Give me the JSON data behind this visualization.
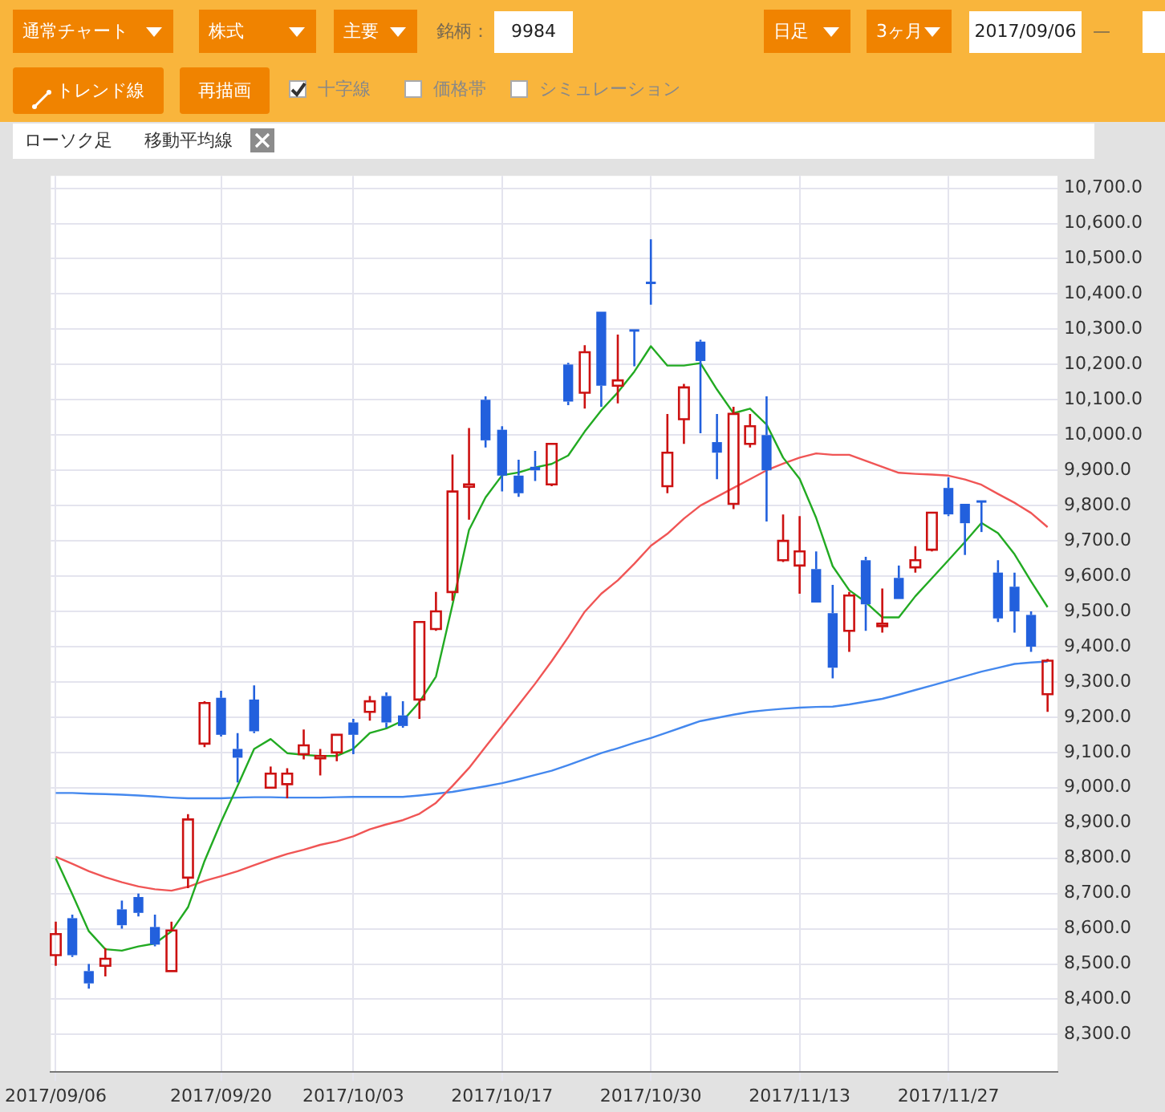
{
  "chart_data": {
    "type": "candlestick",
    "categories": [
      "2017/09/06",
      null,
      null,
      null,
      null,
      null,
      null,
      null,
      null,
      null,
      "2017/09/20",
      null,
      null,
      null,
      null,
      null,
      null,
      null,
      "2017/10/03",
      null,
      null,
      null,
      null,
      null,
      null,
      null,
      null,
      "2017/10/17",
      null,
      null,
      null,
      null,
      null,
      null,
      null,
      null,
      "2017/10/30",
      null,
      null,
      null,
      null,
      null,
      null,
      null,
      null,
      "2017/11/13",
      null,
      null,
      null,
      null,
      null,
      null,
      null,
      null,
      "2017/11/27",
      null,
      null,
      null,
      null,
      null,
      null
    ],
    "ohlc": [
      [
        8525,
        8620,
        8495,
        8585
      ],
      [
        8630,
        8640,
        8520,
        8525
      ],
      [
        8480,
        8500,
        8430,
        8445
      ],
      [
        8495,
        8545,
        8465,
        8515
      ],
      [
        8655,
        8680,
        8600,
        8610
      ],
      [
        8690,
        8700,
        8635,
        8645
      ],
      [
        8605,
        8640,
        8550,
        8555
      ],
      [
        8480,
        8620,
        8480,
        8595
      ],
      [
        8745,
        8925,
        8715,
        8910
      ],
      [
        9125,
        9245,
        9115,
        9240
      ],
      [
        9255,
        9275,
        9145,
        9150
      ],
      [
        9110,
        9155,
        9015,
        9085
      ],
      [
        9250,
        9290,
        9155,
        9160
      ],
      [
        9000,
        9060,
        9000,
        9040
      ],
      [
        9010,
        9055,
        8970,
        9040
      ],
      [
        9095,
        9165,
        9080,
        9120
      ],
      [
        9085,
        9110,
        9035,
        9090
      ],
      [
        9100,
        9150,
        9075,
        9150
      ],
      [
        9185,
        9195,
        9095,
        9150
      ],
      [
        9215,
        9260,
        9190,
        9245
      ],
      [
        9260,
        9270,
        9170,
        9185
      ],
      [
        9205,
        9245,
        9170,
        9175
      ],
      [
        9250,
        9470,
        9195,
        9470
      ],
      [
        9450,
        9555,
        9445,
        9500
      ],
      [
        9555,
        9945,
        9530,
        9840
      ],
      [
        9855,
        10020,
        9760,
        9860
      ],
      [
        10100,
        10110,
        9965,
        9985
      ],
      [
        10015,
        10025,
        9840,
        9885
      ],
      [
        9885,
        9930,
        9825,
        9835
      ],
      [
        9910,
        9955,
        9870,
        9900
      ],
      [
        9860,
        9975,
        9855,
        9975
      ],
      [
        10200,
        10205,
        10085,
        10095
      ],
      [
        10120,
        10255,
        10075,
        10235
      ],
      [
        10350,
        10350,
        10080,
        10140
      ],
      [
        10140,
        10285,
        10090,
        10155
      ],
      [
        10300,
        10300,
        10195,
        10295
      ],
      [
        10435,
        10555,
        10370,
        10430
      ],
      [
        9855,
        10060,
        9835,
        9950
      ],
      [
        10045,
        10145,
        9975,
        10135
      ],
      [
        10265,
        10270,
        10005,
        10210
      ],
      [
        9980,
        10060,
        9875,
        9950
      ],
      [
        9805,
        10080,
        9790,
        10060
      ],
      [
        9975,
        10060,
        9965,
        10025
      ],
      [
        10000,
        10110,
        9755,
        9900
      ],
      [
        9645,
        9775,
        9640,
        9700
      ],
      [
        9630,
        9770,
        9550,
        9670
      ],
      [
        9620,
        9670,
        9525,
        9525
      ],
      [
        9495,
        9575,
        9310,
        9340
      ],
      [
        9445,
        9555,
        9385,
        9545
      ],
      [
        9645,
        9655,
        9445,
        9520
      ],
      [
        9460,
        9565,
        9440,
        9465
      ],
      [
        9595,
        9630,
        9535,
        9535
      ],
      [
        9625,
        9685,
        9610,
        9645
      ],
      [
        9675,
        9780,
        9670,
        9780
      ],
      [
        9850,
        9880,
        9770,
        9775
      ],
      [
        9805,
        9805,
        9660,
        9750
      ],
      [
        9815,
        9815,
        9725,
        9810
      ],
      [
        9610,
        9645,
        9470,
        9480
      ],
      [
        9570,
        9610,
        9440,
        9500
      ],
      [
        9490,
        9500,
        9385,
        9400
      ],
      [
        9265,
        9365,
        9215,
        9360
      ]
    ],
    "colors": [
      "#cc1111",
      "#2260dd",
      "#2260dd",
      "#cc1111",
      "#2260dd",
      "#2260dd",
      "#2260dd",
      "#cc1111",
      "#cc1111",
      "#cc1111",
      "#2260dd",
      "#2260dd",
      "#2260dd",
      "#cc1111",
      "#cc1111",
      "#cc1111",
      "#cc1111",
      "#cc1111",
      "#2260dd",
      "#cc1111",
      "#2260dd",
      "#2260dd",
      "#cc1111",
      "#cc1111",
      "#cc1111",
      "#cc1111",
      "#2260dd",
      "#2260dd",
      "#2260dd",
      "#2260dd",
      "#cc1111",
      "#2260dd",
      "#cc1111",
      "#2260dd",
      "#cc1111",
      "#2260dd",
      "#2260dd",
      "#cc1111",
      "#cc1111",
      "#2260dd",
      "#2260dd",
      "#cc1111",
      "#cc1111",
      "#2260dd",
      "#cc1111",
      "#cc1111",
      "#2260dd",
      "#2260dd",
      "#cc1111",
      "#2260dd",
      "#cc1111",
      "#2260dd",
      "#cc1111",
      "#cc1111",
      "#2260dd",
      "#2260dd",
      "#2260dd",
      "#2260dd",
      "#2260dd",
      "#2260dd",
      "#cc1111"
    ],
    "series": [
      {
        "type": "line",
        "color": "#22aa22",
        "values": [
          8800,
          8698,
          8593,
          8542,
          8538,
          8550,
          8558,
          8593,
          8661,
          8792,
          8903,
          9005,
          9110,
          9138,
          9098,
          9093,
          9090,
          9090,
          9110,
          9155,
          9168,
          9190,
          9243,
          9315,
          9519,
          9731,
          9823,
          9886,
          9894,
          9908,
          9918,
          9942,
          10010,
          10070,
          10121,
          10180,
          10252,
          10197,
          10197,
          10204,
          10129,
          10062,
          10075,
          10030,
          9936,
          9876,
          9765,
          9628,
          9560,
          9526,
          9483,
          9483,
          9543,
          9594,
          9645,
          9697,
          9751,
          9722,
          9662,
          9585,
          9512
        ]
      },
      {
        "type": "line",
        "color": "#f05555",
        "values": [
          8804,
          8784,
          8763,
          8746,
          8732,
          8720,
          8712,
          8708,
          8719,
          8736,
          8749,
          8763,
          8780,
          8797,
          8812,
          8824,
          8838,
          8848,
          8862,
          8882,
          8896,
          8908,
          8926,
          8957,
          9005,
          9056,
          9116,
          9175,
          9235,
          9295,
          9359,
          9427,
          9499,
          9550,
          9588,
          9635,
          9686,
          9720,
          9763,
          9800,
          9825,
          9850,
          9875,
          9900,
          9919,
          9936,
          9948,
          9944,
          9944,
          9927,
          9910,
          9893,
          9890,
          9888,
          9885,
          9874,
          9859,
          9833,
          9808,
          9779,
          9739
        ]
      },
      {
        "type": "line",
        "color": "#4488ee",
        "values": [
          8985,
          8985,
          8983,
          8982,
          8980,
          8978,
          8975,
          8972,
          8970,
          8970,
          8970,
          8972,
          8973,
          8973,
          8972,
          8972,
          8972,
          8973,
          8974,
          8974,
          8974,
          8974,
          8978,
          8983,
          8988,
          8996,
          9004,
          9013,
          9024,
          9036,
          9048,
          9064,
          9081,
          9098,
          9112,
          9127,
          9141,
          9157,
          9173,
          9189,
          9198,
          9207,
          9215,
          9220,
          9224,
          9227,
          9229,
          9230,
          9236,
          9244,
          9252,
          9264,
          9277,
          9290,
          9303,
          9316,
          9329,
          9340,
          9351,
          9355,
          9358
        ]
      }
    ],
    "ylim": [
      8195,
      10735
    ],
    "yticks": [
      {
        "value": 8300,
        "label": "8,300.0"
      },
      {
        "value": 8400,
        "label": "8,400.0"
      },
      {
        "value": 8500,
        "label": "8,500.0"
      },
      {
        "value": 8600,
        "label": "8,600.0"
      },
      {
        "value": 8700,
        "label": "8,700.0"
      },
      {
        "value": 8800,
        "label": "8,800.0"
      },
      {
        "value": 8900,
        "label": "8,900.0"
      },
      {
        "value": 9000,
        "label": "9,000.0"
      },
      {
        "value": 9100,
        "label": "9,100.0"
      },
      {
        "value": 9200,
        "label": "9,200.0"
      },
      {
        "value": 9300,
        "label": "9,300.0"
      },
      {
        "value": 9400,
        "label": "9,400.0"
      },
      {
        "value": 9500,
        "label": "9,500.0"
      },
      {
        "value": 9600,
        "label": "9,600.0"
      },
      {
        "value": 9700,
        "label": "9,700.0"
      },
      {
        "value": 9800,
        "label": "9,800.0"
      },
      {
        "value": 9900,
        "label": "9,900.0"
      },
      {
        "value": 10000,
        "label": "10,000.0"
      },
      {
        "value": 10100,
        "label": "10,100.0"
      },
      {
        "value": 10200,
        "label": "10,200.0"
      },
      {
        "value": 10300,
        "label": "10,300.0"
      },
      {
        "value": 10400,
        "label": "10,400.0"
      },
      {
        "value": 10500,
        "label": "10,500.0"
      },
      {
        "value": 10600,
        "label": "10,600.0"
      },
      {
        "value": 10700,
        "label": "10,700.0"
      }
    ],
    "grid": true,
    "annotations": [
      "通常チャート",
      "株式",
      "主要",
      "銘柄：",
      "9984",
      "日足",
      "3ヶ月",
      "2017/09/06",
      "—",
      "トレンド線",
      "再描画",
      "十字線",
      "価格帯",
      "シミュレーション",
      "ローソク足",
      "移動平均線"
    ]
  }
}
